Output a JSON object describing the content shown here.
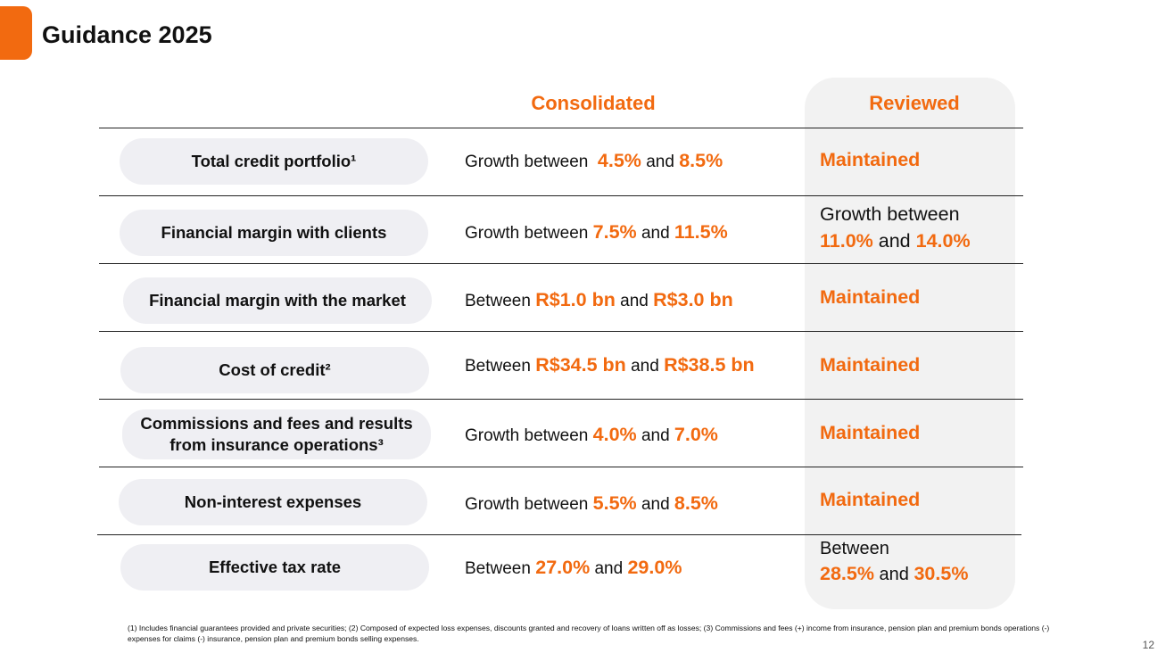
{
  "header": {
    "title": "Guidance 2025"
  },
  "columns": {
    "consolidated": "Consolidated",
    "reviewed": "Reviewed"
  },
  "rows": [
    {
      "label": "Total credit portfolio¹",
      "cons": [
        "Growth between",
        "4.5%",
        "and",
        "8.5%"
      ],
      "reviewed": {
        "type": "maintained",
        "text": "Maintained"
      }
    },
    {
      "label": "Financial margin with clients",
      "cons": [
        "Growth between",
        "7.5%",
        "and",
        "11.5%"
      ],
      "reviewed": {
        "type": "range",
        "line1": "Growth between",
        "v1": "11.0%",
        "and": "and",
        "v2": "14.0%"
      }
    },
    {
      "label": "Financial margin with the market",
      "cons": [
        "Between",
        "R$1.0 bn",
        "and",
        "R$3.0 bn"
      ],
      "reviewed": {
        "type": "maintained",
        "text": "Maintained"
      }
    },
    {
      "label": "Cost of credit²",
      "cons": [
        "Between",
        "R$34.5 bn",
        "and",
        "R$38.5 bn"
      ],
      "reviewed": {
        "type": "maintained",
        "text": "Maintained"
      }
    },
    {
      "label": "Commissions and fees and results from insurance operations³",
      "cons": [
        "Growth between",
        "4.0%",
        "and",
        "7.0%"
      ],
      "reviewed": {
        "type": "maintained",
        "text": "Maintained"
      }
    },
    {
      "label": "Non-interest expenses",
      "cons": [
        "Growth between",
        "5.5%",
        "and",
        "8.5%"
      ],
      "reviewed": {
        "type": "maintained",
        "text": "Maintained"
      }
    },
    {
      "label": "Effective tax rate",
      "cons": [
        "Between",
        "27.0%",
        "and",
        "29.0%"
      ],
      "reviewed": {
        "type": "range",
        "line1": "Between",
        "v1": "28.5%",
        "and": "and",
        "v2": "30.5%"
      }
    }
  ],
  "footnote": "(1) Includes financial guarantees provided and private securities; (2) Composed of expected loss expenses, discounts granted and recovery of loans written off as losses; (3) Commissions and fees (+) income from insurance, pension plan and premium bonds operations (-) expenses for claims (-) insurance, pension plan and premium bonds selling expenses.",
  "page_number": "12",
  "colors": {
    "accent": "#f26a10",
    "pill": "#efeff3",
    "reviewed_bg": "#f2f2f2"
  }
}
